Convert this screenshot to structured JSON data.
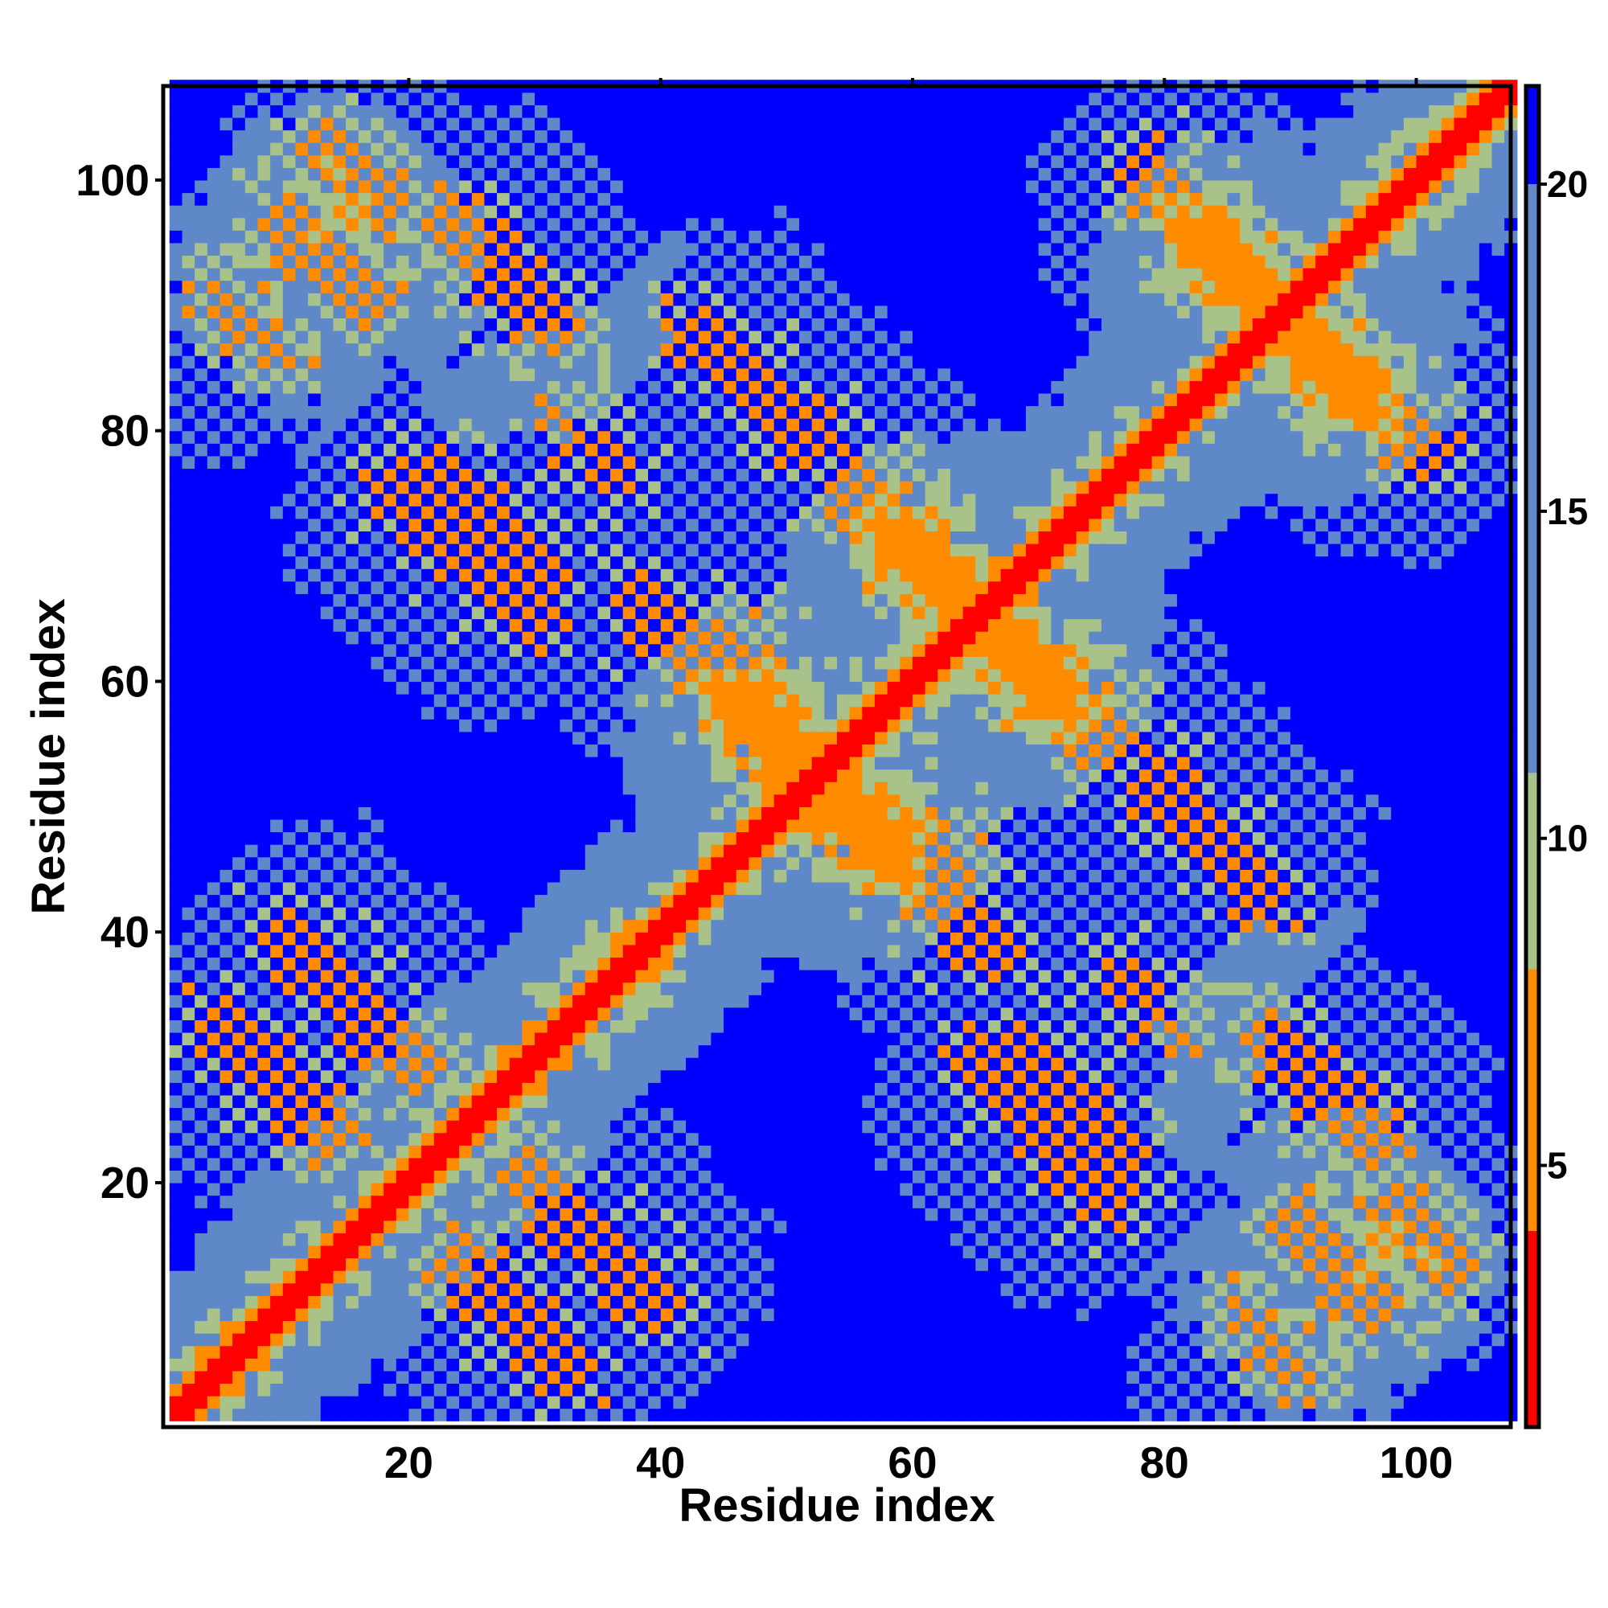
{
  "chart_data": {
    "type": "heatmap",
    "title": "",
    "xlabel": "Residue index",
    "ylabel": "Residue index",
    "xlim": [
      1,
      107
    ],
    "ylim": [
      1,
      107
    ],
    "x_ticks": [
      20,
      40,
      60,
      80,
      100
    ],
    "y_ticks": [
      20,
      40,
      60,
      80,
      100
    ],
    "x_tick_labels": [
      "20",
      "40",
      "60",
      "80",
      "100"
    ],
    "y_tick_labels": [
      "20",
      "40",
      "60",
      "80",
      "100"
    ],
    "colorbar": {
      "range": [
        1,
        21.5
      ],
      "ticks": [
        5,
        10,
        15,
        20
      ],
      "tick_labels": [
        "5",
        "10",
        "15",
        "20"
      ],
      "colors": [
        {
          "from": 1,
          "to": 4,
          "color": "#ff0000"
        },
        {
          "from": 4,
          "to": 8,
          "color": "#ff8c00"
        },
        {
          "from": 8,
          "to": 11,
          "color": "#a8c28a"
        },
        {
          "from": 11,
          "to": 20,
          "color": "#5e88c8"
        },
        {
          "from": 20,
          "to": 21.5,
          "color": "#0000ff"
        }
      ]
    },
    "symmetric": true,
    "features": [
      {
        "type": "main-diagonal",
        "from": 1,
        "to": 107,
        "value": 2
      },
      {
        "type": "antiparallel-contact",
        "center_i": 15,
        "center_j": 34,
        "half_length": 6,
        "value": 6
      },
      {
        "type": "antiparallel-contact",
        "center_i": 28,
        "center_j": 9,
        "half_length": 5,
        "value": 6
      },
      {
        "type": "antiparallel-contact",
        "center_i": 51,
        "center_j": 52,
        "half_length": 6,
        "value": 5.5
      },
      {
        "type": "antiparallel-contact",
        "center_i": 64,
        "center_j": 65,
        "half_length": 6,
        "value": 5.5
      },
      {
        "type": "antiparallel-contact",
        "center_i": 88,
        "center_j": 89,
        "half_length": 6,
        "value": 5.5
      },
      {
        "type": "antiparallel-contact",
        "center_i": 59,
        "center_j": 45,
        "half_length": 8,
        "value": 6
      },
      {
        "type": "antiparallel-contact",
        "center_i": 60,
        "center_j": 70,
        "half_length": 6,
        "value": 6
      },
      {
        "type": "antiparallel-contact",
        "center_i": 72,
        "center_j": 26,
        "half_length": 5,
        "value": 6
      },
      {
        "type": "antiparallel-contact",
        "center_i": 47,
        "center_j": 83,
        "half_length": 5,
        "value": 6
      },
      {
        "type": "antiparallel-contact",
        "center_i": 34,
        "center_j": 78,
        "half_length": 3,
        "value": 6.5
      },
      {
        "type": "antiparallel-contact",
        "center_i": 70,
        "center_j": 24,
        "half_length": 6,
        "value": 6
      },
      {
        "type": "antiparallel-contact",
        "center_i": 82,
        "center_j": 96,
        "half_length": 5,
        "value": 6
      },
      {
        "type": "antiparallel-contact",
        "center_i": 92,
        "center_j": 27,
        "half_length": 5,
        "value": 6
      },
      {
        "type": "antiparallel-contact",
        "center_i": 15,
        "center_j": 100,
        "half_length": 3,
        "value": 6
      },
      {
        "type": "antiparallel-contact",
        "center_i": 93,
        "center_j": 13,
        "half_length": 4,
        "value": 6
      },
      {
        "type": "antiparallel-contact",
        "center_i": 7,
        "center_j": 88,
        "half_length": 3,
        "value": 6.5
      },
      {
        "type": "antiparallel-contact",
        "center_i": 47,
        "center_j": 61,
        "half_length": 3,
        "value": 6.5
      }
    ]
  }
}
